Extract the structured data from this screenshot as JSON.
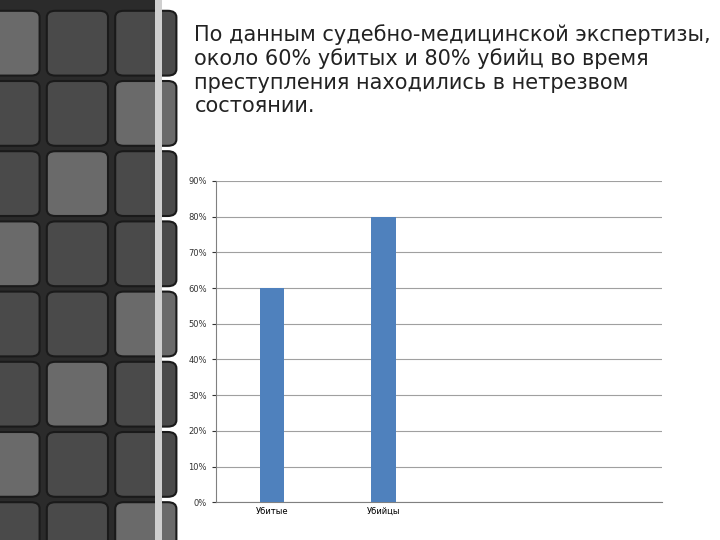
{
  "chart_data": {
    "type": "bar",
    "title": "По данным судебно-медицинской экспертизы, около 60% убитых и 80% убийц во время преступления находились в нетрезвом состоянии.",
    "categories": [
      "Убитые",
      "Убийцы"
    ],
    "values": [
      60,
      80
    ],
    "color": "#4f81bd",
    "ylim": [
      0,
      90
    ],
    "yticks": [
      {
        "value": 0,
        "label": "0%"
      },
      {
        "value": 10,
        "label": "10%"
      },
      {
        "value": 20,
        "label": "20%"
      },
      {
        "value": 30,
        "label": "30%"
      },
      {
        "value": 40,
        "label": "40%"
      },
      {
        "value": 50,
        "label": "50%"
      },
      {
        "value": 60,
        "label": "60%"
      },
      {
        "value": 70,
        "label": "70%"
      },
      {
        "value": 80,
        "label": "80%"
      },
      {
        "value": 90,
        "label": "90%"
      }
    ],
    "grid": true
  }
}
